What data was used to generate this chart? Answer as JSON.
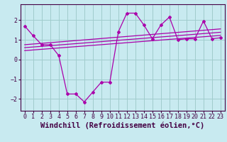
{
  "background_color": "#c8eaf0",
  "grid_color": "#a0cccc",
  "line_color": "#aa00aa",
  "xlabel": "Windchill (Refroidissement éolien,°C)",
  "xlabel_fontsize": 7.5,
  "tick_fontsize": 6,
  "xlim": [
    -0.5,
    23.5
  ],
  "ylim": [
    -2.6,
    2.8
  ],
  "yticks": [
    -2,
    -1,
    0,
    1,
    2
  ],
  "xticks": [
    0,
    1,
    2,
    3,
    4,
    5,
    6,
    7,
    8,
    9,
    10,
    11,
    12,
    13,
    14,
    15,
    16,
    17,
    18,
    19,
    20,
    21,
    22,
    23
  ],
  "line1_x": [
    0,
    1,
    2,
    3,
    4,
    5,
    6,
    7,
    8,
    9,
    10,
    11,
    12,
    13,
    14,
    15,
    16,
    17,
    18,
    19,
    20,
    21,
    22,
    23
  ],
  "line1_y": [
    1.7,
    1.2,
    0.75,
    0.75,
    0.2,
    -1.75,
    -1.75,
    -2.15,
    -1.65,
    -1.15,
    -1.15,
    1.4,
    2.35,
    2.35,
    1.75,
    1.05,
    1.75,
    2.15,
    1.0,
    1.05,
    1.05,
    1.95,
    1.05,
    1.1
  ],
  "line2_x": [
    0,
    23
  ],
  "line2_y": [
    0.75,
    1.55
  ],
  "line3_x": [
    0,
    23
  ],
  "line3_y": [
    0.6,
    1.38
  ],
  "line4_x": [
    0,
    23
  ],
  "line4_y": [
    0.45,
    1.22
  ],
  "spine_color": "#440044",
  "label_color": "#440044"
}
